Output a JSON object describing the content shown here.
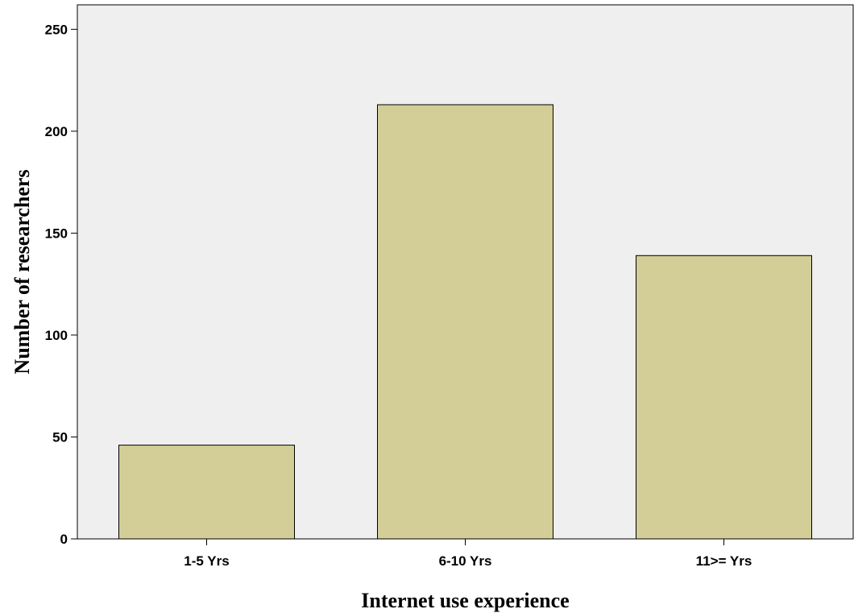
{
  "chart_data": {
    "type": "bar",
    "categories": [
      "1-5 Yrs",
      "6-10 Yrs",
      "11>= Yrs"
    ],
    "values": [
      46,
      213,
      139
    ],
    "title": "",
    "xlabel": "Internet use experience",
    "ylabel": "Number of researchers",
    "ylim": [
      0,
      262
    ],
    "yticks": [
      0,
      50,
      100,
      150,
      200,
      250
    ],
    "grid": false,
    "legend": "none",
    "colors": {
      "plot_background": "#efefef",
      "bar_fill": "#d3ce98",
      "bar_stroke": "#000000",
      "axis": "#000000"
    }
  }
}
